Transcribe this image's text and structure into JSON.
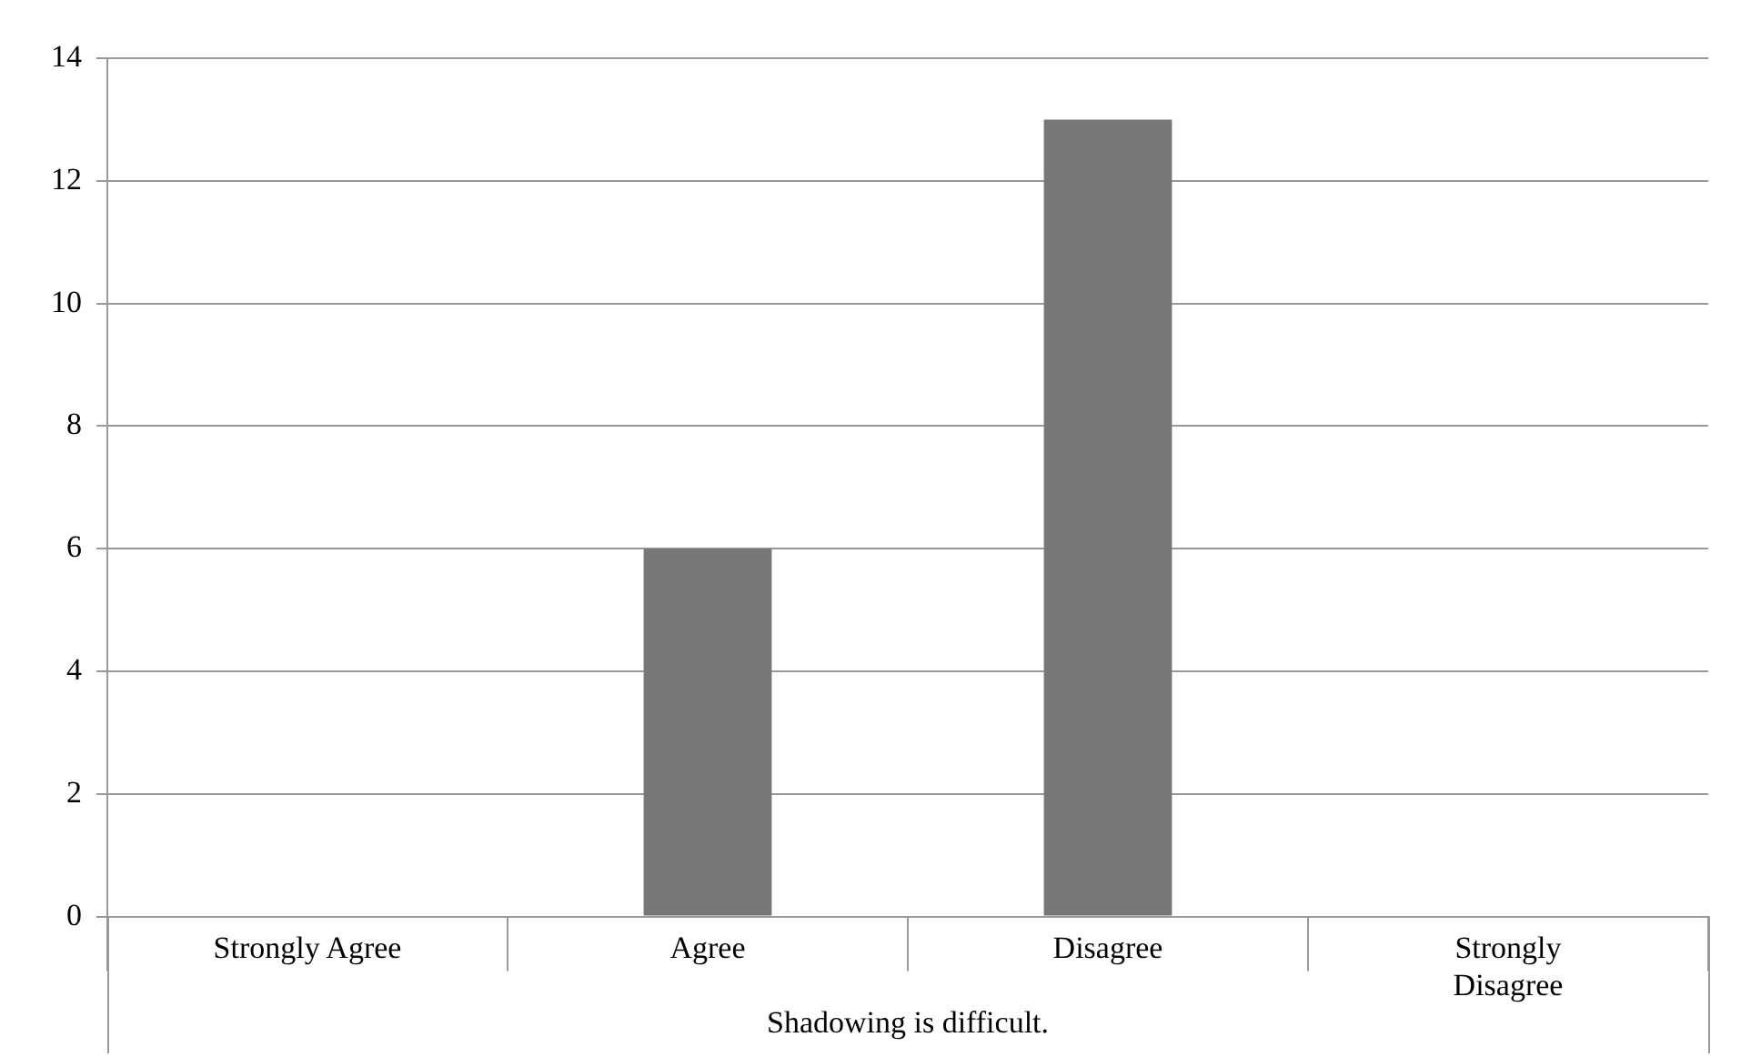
{
  "chart_data": {
    "type": "bar",
    "xlabel": "Shadowing is difficult.",
    "categories": [
      "Strongly Agree",
      "Agree",
      "Disagree",
      "Strongly Disagree"
    ],
    "values": [
      0,
      6,
      13,
      0
    ],
    "color": "#777777",
    "ylim": [
      0,
      14
    ],
    "yticks": [
      0,
      2,
      4,
      6,
      8,
      10,
      12,
      14
    ],
    "grid": "y",
    "legend": false
  }
}
